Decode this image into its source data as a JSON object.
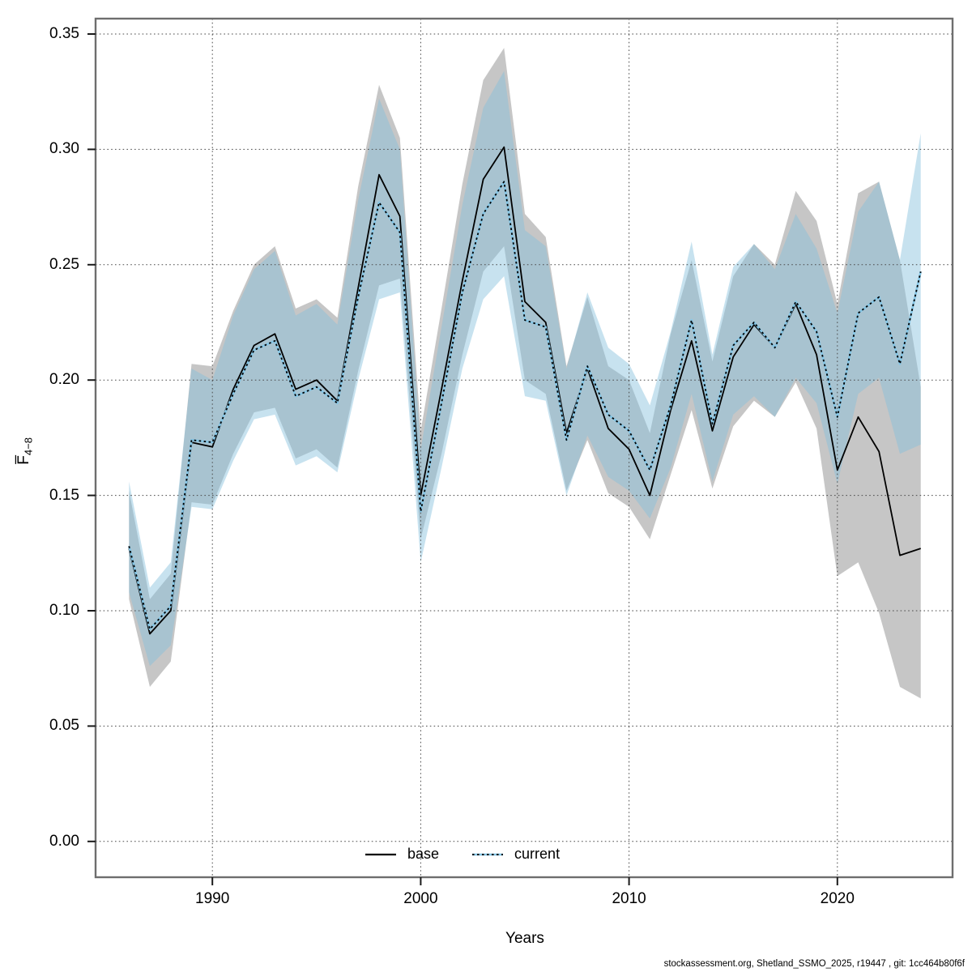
{
  "page": {
    "background_color": "#ffffff"
  },
  "axes": {
    "x_title": "Years",
    "y_title_main": "F̅",
    "y_title_sub": "4−8",
    "y_ticks": [
      {
        "value": 0.0,
        "label": "0.00"
      },
      {
        "value": 0.05,
        "label": "0.05"
      },
      {
        "value": 0.1,
        "label": "0.10"
      },
      {
        "value": 0.15,
        "label": "0.15"
      },
      {
        "value": 0.2,
        "label": "0.20"
      },
      {
        "value": 0.25,
        "label": "0.25"
      },
      {
        "value": 0.3,
        "label": "0.30"
      },
      {
        "value": 0.35,
        "label": "0.35"
      }
    ],
    "x_ticks": [
      {
        "value": 1990,
        "label": "1990"
      },
      {
        "value": 2000,
        "label": "2000"
      },
      {
        "value": 2010,
        "label": "2010"
      },
      {
        "value": 2020,
        "label": "2020"
      }
    ]
  },
  "legend": {
    "base_label": "base",
    "current_label": "current"
  },
  "footer": {
    "credit": "stockassessment.org, Shetland_SSMO_2025, r19447 , git: 1cc464b80f6f"
  },
  "colors": {
    "base_band": "#c6c6c6",
    "current_band": "rgba(130,190,220,0.45)",
    "current_line_underlay": "#85c6e6",
    "median_line": "#000000",
    "grid": "#4a4a4a",
    "box": "#6e6e6e",
    "tick": "#1a1a1a"
  },
  "chart_data": {
    "type": "line",
    "title": "",
    "xlabel": "Years",
    "ylabel": "F4-8 (mean fishing mortality, ages 4-8)",
    "ylim": [
      0.0,
      0.35
    ],
    "xlim": [
      1986,
      2024
    ],
    "grid": true,
    "legend_position": "bottom-center",
    "x": [
      1986,
      1987,
      1988,
      1989,
      1990,
      1991,
      1992,
      1993,
      1994,
      1995,
      1996,
      1997,
      1998,
      1999,
      2000,
      2001,
      2002,
      2003,
      2004,
      2005,
      2006,
      2007,
      2008,
      2009,
      2010,
      2011,
      2012,
      2013,
      2014,
      2015,
      2016,
      2017,
      2018,
      2019,
      2020,
      2021,
      2022,
      2023,
      2024
    ],
    "series": [
      {
        "name": "base",
        "line_style": "solid",
        "values": [
          0.127,
          0.09,
          0.1,
          0.173,
          0.171,
          0.196,
          0.215,
          0.22,
          0.196,
          0.2,
          0.191,
          0.24,
          0.289,
          0.271,
          0.15,
          0.196,
          0.243,
          0.287,
          0.301,
          0.234,
          0.225,
          0.177,
          0.205,
          0.179,
          0.17,
          0.15,
          0.187,
          0.217,
          0.178,
          0.21,
          0.224,
          0.214,
          0.233,
          0.211,
          0.161,
          0.184,
          0.169,
          0.124,
          0.127
        ],
        "lo": [
          0.105,
          0.067,
          0.078,
          0.147,
          0.146,
          0.168,
          0.186,
          0.188,
          0.166,
          0.17,
          0.162,
          0.204,
          0.241,
          0.244,
          0.131,
          0.168,
          0.211,
          0.247,
          0.258,
          0.2,
          0.194,
          0.152,
          0.174,
          0.151,
          0.145,
          0.131,
          0.159,
          0.187,
          0.153,
          0.18,
          0.191,
          0.184,
          0.199,
          0.179,
          0.115,
          0.121,
          0.099,
          0.067,
          0.062
        ],
        "hi": [
          0.152,
          0.105,
          0.116,
          0.207,
          0.206,
          0.23,
          0.25,
          0.258,
          0.231,
          0.235,
          0.227,
          0.284,
          0.328,
          0.305,
          0.178,
          0.231,
          0.285,
          0.33,
          0.344,
          0.272,
          0.262,
          0.206,
          0.236,
          0.206,
          0.2,
          0.177,
          0.22,
          0.252,
          0.208,
          0.245,
          0.259,
          0.25,
          0.282,
          0.269,
          0.233,
          0.281,
          0.286,
          0.252,
          0.197
        ]
      },
      {
        "name": "current",
        "line_style": "dotted",
        "values": [
          0.128,
          0.092,
          0.102,
          0.174,
          0.173,
          0.194,
          0.213,
          0.217,
          0.193,
          0.197,
          0.19,
          0.236,
          0.277,
          0.264,
          0.143,
          0.19,
          0.238,
          0.272,
          0.286,
          0.226,
          0.223,
          0.174,
          0.206,
          0.185,
          0.178,
          0.161,
          0.189,
          0.226,
          0.181,
          0.215,
          0.225,
          0.214,
          0.234,
          0.221,
          0.184,
          0.229,
          0.236,
          0.207,
          0.247
        ],
        "lo": [
          0.108,
          0.076,
          0.085,
          0.145,
          0.144,
          0.165,
          0.183,
          0.185,
          0.163,
          0.167,
          0.16,
          0.2,
          0.235,
          0.238,
          0.121,
          0.162,
          0.205,
          0.235,
          0.245,
          0.193,
          0.191,
          0.15,
          0.176,
          0.158,
          0.152,
          0.14,
          0.162,
          0.194,
          0.156,
          0.185,
          0.193,
          0.184,
          0.201,
          0.19,
          0.155,
          0.194,
          0.201,
          0.168,
          0.172
        ],
        "hi": [
          0.156,
          0.11,
          0.121,
          0.205,
          0.2,
          0.228,
          0.248,
          0.256,
          0.228,
          0.233,
          0.224,
          0.278,
          0.322,
          0.3,
          0.17,
          0.223,
          0.276,
          0.318,
          0.334,
          0.265,
          0.258,
          0.205,
          0.238,
          0.214,
          0.207,
          0.189,
          0.221,
          0.26,
          0.211,
          0.249,
          0.259,
          0.248,
          0.272,
          0.257,
          0.229,
          0.273,
          0.286,
          0.252,
          0.307
        ]
      }
    ]
  }
}
